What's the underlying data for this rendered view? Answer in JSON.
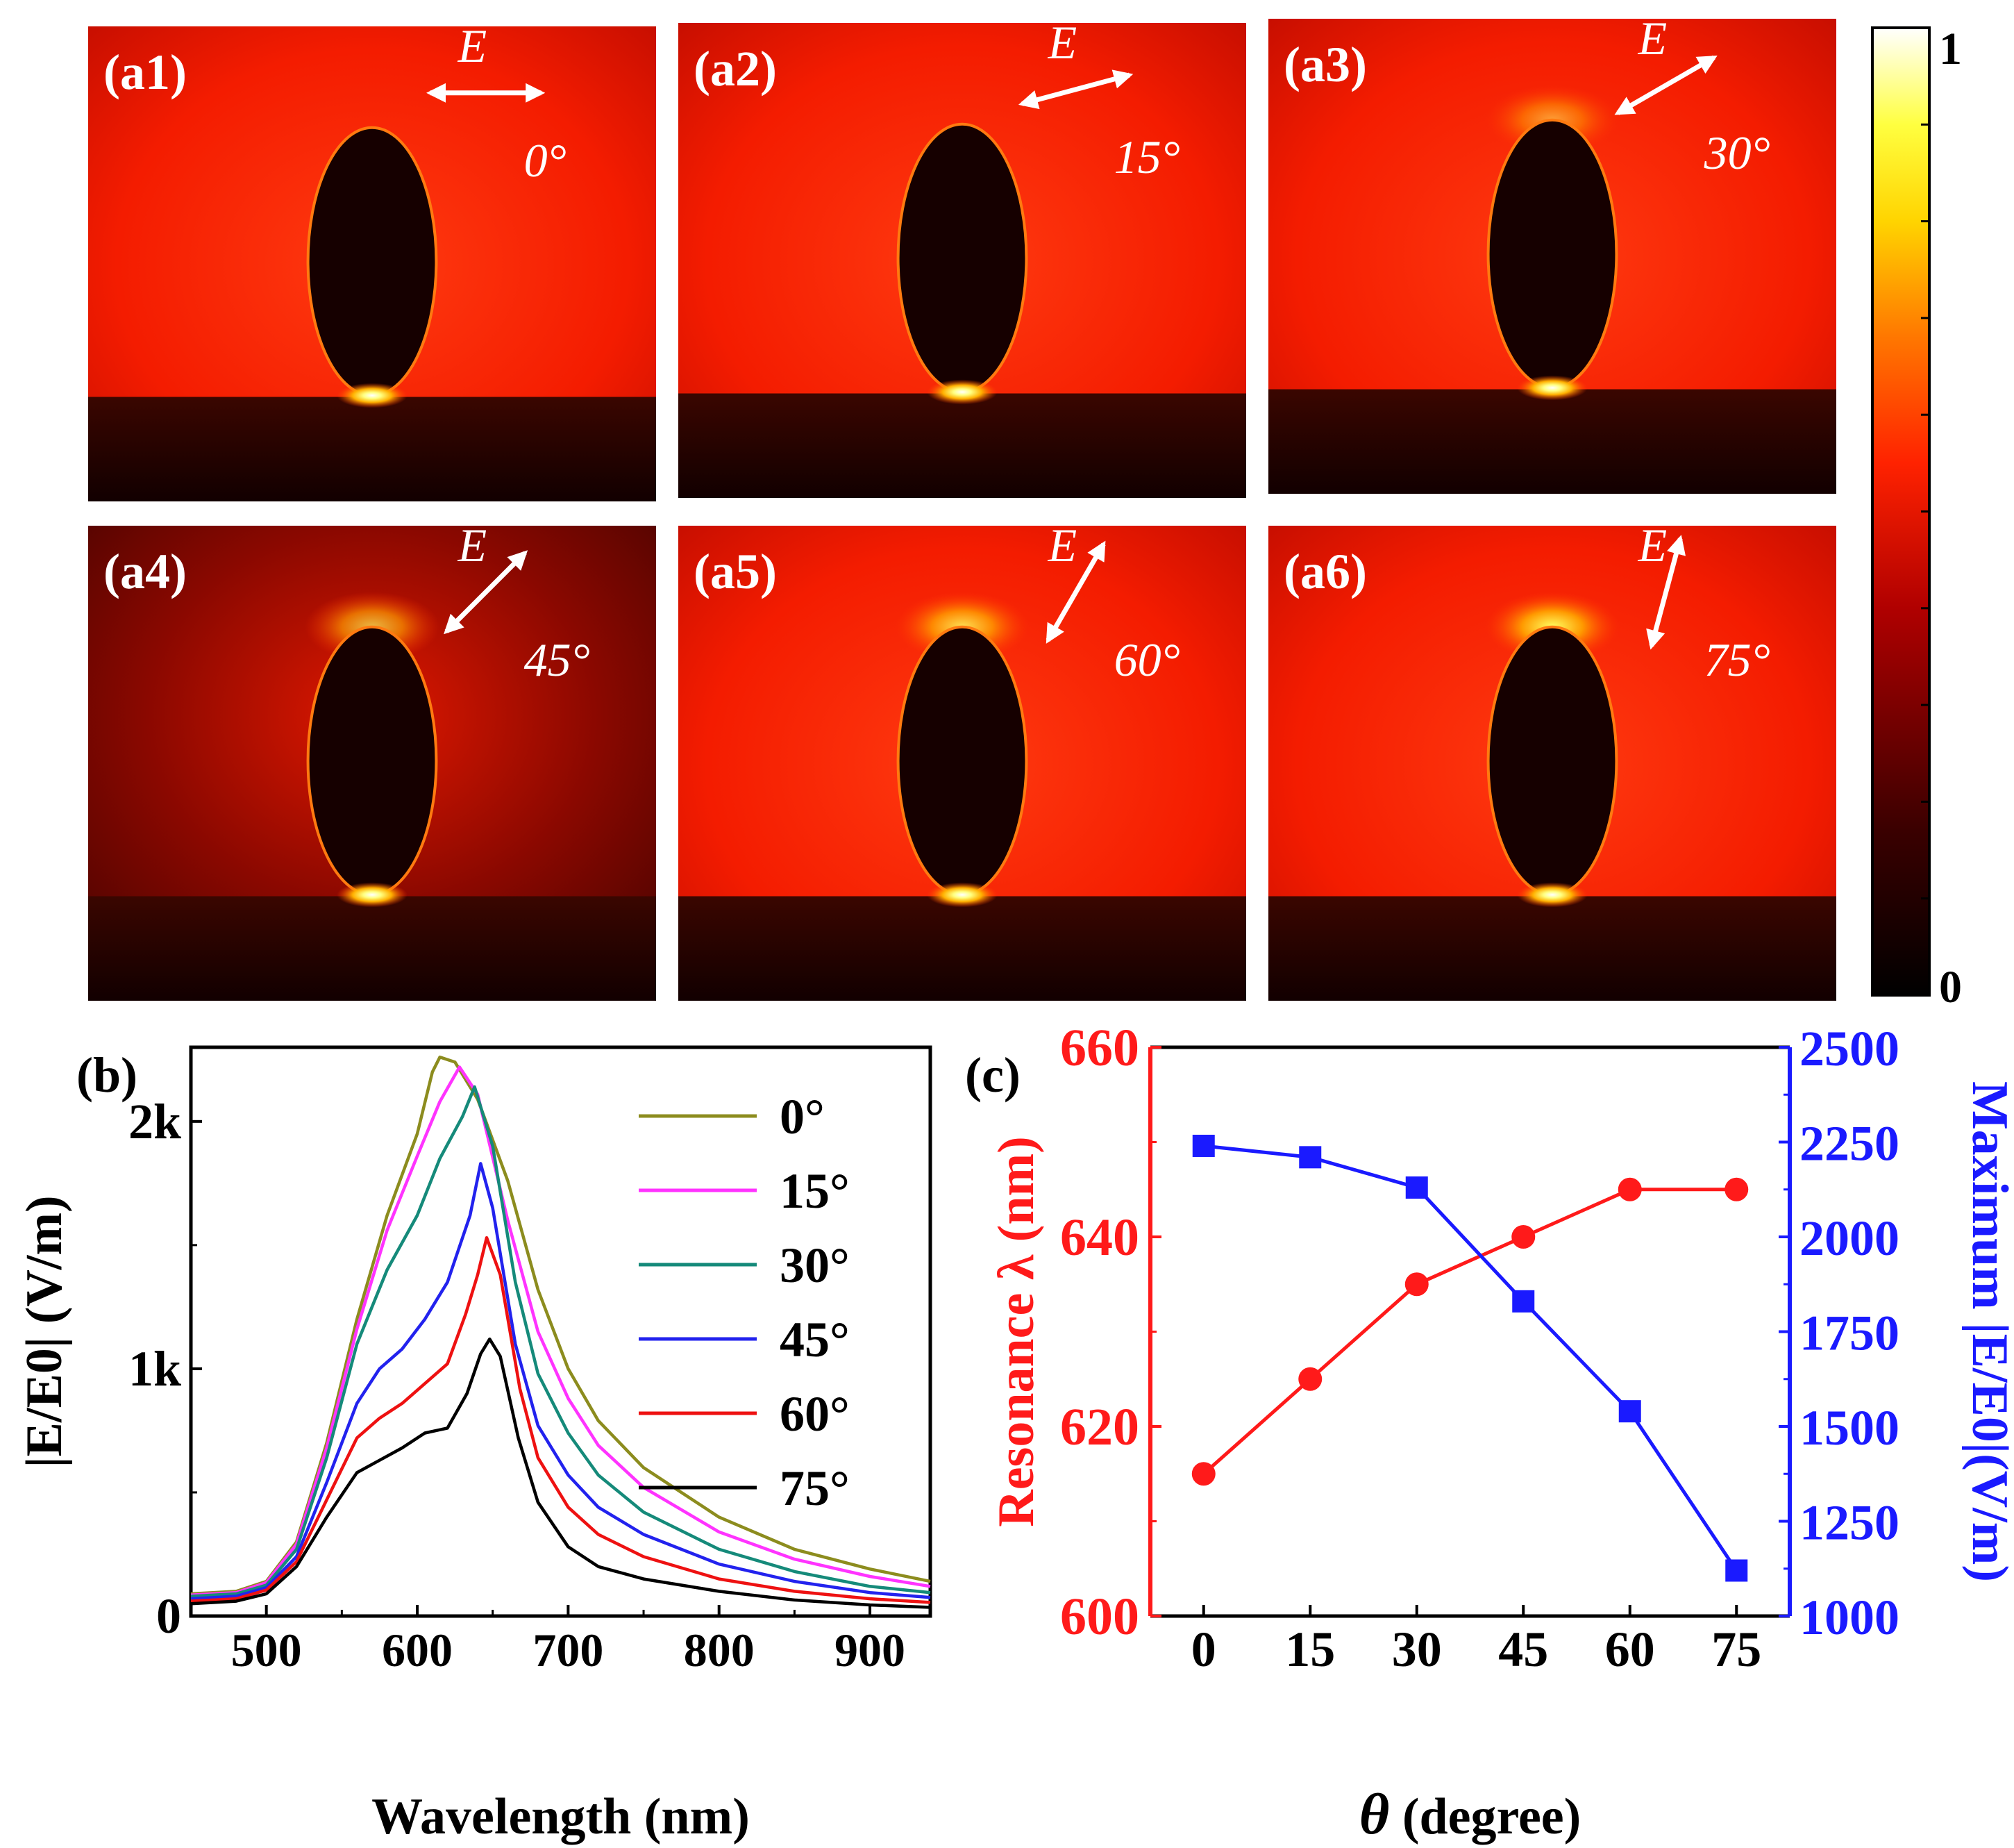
{
  "colors": {
    "left_axis": "#ff1a1a",
    "right_axis": "#1a1aff",
    "panel_text": "#ffffff"
  },
  "field_maps": {
    "panels": [
      {
        "label": "(a1)",
        "field": "E",
        "angle_text": "0°",
        "angle_deg": 0
      },
      {
        "label": "(a2)",
        "field": "E",
        "angle_text": "15°",
        "angle_deg": 15
      },
      {
        "label": "(a3)",
        "field": "E",
        "angle_text": "30°",
        "angle_deg": 30
      },
      {
        "label": "(a4)",
        "field": "E",
        "angle_text": "45°",
        "angle_deg": 45
      },
      {
        "label": "(a5)",
        "field": "E",
        "angle_text": "60°",
        "angle_deg": 60
      },
      {
        "label": "(a6)",
        "field": "E",
        "angle_text": "75°",
        "angle_deg": 75
      }
    ],
    "colorbar": {
      "max_label": "1",
      "min_label": "0",
      "colormap": [
        "#000000",
        "#3a0000",
        "#b00000",
        "#ff2200",
        "#ff7700",
        "#ffd400",
        "#ffff40",
        "#ffffff"
      ]
    }
  },
  "chart_data": [
    {
      "panel_label": "(b)",
      "type": "line",
      "xlabel": "Wavelength (nm)",
      "ylabel": "|E/E0| (V/m)",
      "xlim": [
        450,
        940
      ],
      "ylim": [
        0,
        2300
      ],
      "xticks": [
        500,
        600,
        700,
        800,
        900
      ],
      "yticks": [
        {
          "value": 0,
          "label": "0"
        },
        {
          "value": 1000,
          "label": "1k"
        },
        {
          "value": 2000,
          "label": "2k"
        }
      ],
      "legend_position": "top-right",
      "series": [
        {
          "name": "0°",
          "color": "#8c8c1e",
          "points": [
            [
              450,
              90
            ],
            [
              480,
              100
            ],
            [
              500,
              140
            ],
            [
              520,
              300
            ],
            [
              540,
              700
            ],
            [
              560,
              1200
            ],
            [
              580,
              1620
            ],
            [
              600,
              1950
            ],
            [
              610,
              2200
            ],
            [
              615,
              2260
            ],
            [
              625,
              2240
            ],
            [
              640,
              2090
            ],
            [
              660,
              1760
            ],
            [
              680,
              1320
            ],
            [
              700,
              1000
            ],
            [
              720,
              790
            ],
            [
              750,
              600
            ],
            [
              800,
              400
            ],
            [
              850,
              270
            ],
            [
              900,
              190
            ],
            [
              940,
              140
            ]
          ]
        },
        {
          "name": "15°",
          "color": "#ff33ff",
          "points": [
            [
              450,
              85
            ],
            [
              480,
              95
            ],
            [
              500,
              135
            ],
            [
              520,
              290
            ],
            [
              540,
              680
            ],
            [
              560,
              1160
            ],
            [
              580,
              1560
            ],
            [
              600,
              1860
            ],
            [
              615,
              2080
            ],
            [
              628,
              2220
            ],
            [
              640,
              2110
            ],
            [
              660,
              1600
            ],
            [
              680,
              1150
            ],
            [
              700,
              880
            ],
            [
              720,
              690
            ],
            [
              750,
              520
            ],
            [
              800,
              340
            ],
            [
              850,
              230
            ],
            [
              900,
              160
            ],
            [
              940,
              120
            ]
          ]
        },
        {
          "name": "30°",
          "color": "#158a7a",
          "points": [
            [
              450,
              80
            ],
            [
              480,
              90
            ],
            [
              500,
              125
            ],
            [
              520,
              270
            ],
            [
              540,
              640
            ],
            [
              560,
              1100
            ],
            [
              580,
              1400
            ],
            [
              600,
              1620
            ],
            [
              615,
              1850
            ],
            [
              630,
              2020
            ],
            [
              638,
              2140
            ],
            [
              650,
              1900
            ],
            [
              665,
              1350
            ],
            [
              680,
              980
            ],
            [
              700,
              740
            ],
            [
              720,
              570
            ],
            [
              750,
              420
            ],
            [
              800,
              270
            ],
            [
              850,
              180
            ],
            [
              900,
              120
            ],
            [
              940,
              95
            ]
          ]
        },
        {
          "name": "45°",
          "color": "#2222ee",
          "points": [
            [
              450,
              70
            ],
            [
              480,
              80
            ],
            [
              500,
              115
            ],
            [
              520,
              240
            ],
            [
              540,
              540
            ],
            [
              560,
              860
            ],
            [
              575,
              1000
            ],
            [
              590,
              1080
            ],
            [
              605,
              1200
            ],
            [
              620,
              1350
            ],
            [
              635,
              1620
            ],
            [
              642,
              1830
            ],
            [
              650,
              1650
            ],
            [
              665,
              1100
            ],
            [
              680,
              770
            ],
            [
              700,
              570
            ],
            [
              720,
              440
            ],
            [
              750,
              330
            ],
            [
              800,
              210
            ],
            [
              850,
              140
            ],
            [
              900,
              95
            ],
            [
              940,
              75
            ]
          ]
        },
        {
          "name": "60°",
          "color": "#ee1111",
          "points": [
            [
              450,
              60
            ],
            [
              480,
              70
            ],
            [
              500,
              105
            ],
            [
              520,
              220
            ],
            [
              540,
              470
            ],
            [
              560,
              720
            ],
            [
              575,
              800
            ],
            [
              590,
              860
            ],
            [
              605,
              940
            ],
            [
              620,
              1020
            ],
            [
              632,
              1220
            ],
            [
              640,
              1380
            ],
            [
              646,
              1530
            ],
            [
              655,
              1380
            ],
            [
              668,
              920
            ],
            [
              680,
              640
            ],
            [
              700,
              440
            ],
            [
              720,
              330
            ],
            [
              750,
              240
            ],
            [
              800,
              150
            ],
            [
              850,
              100
            ],
            [
              900,
              70
            ],
            [
              940,
              55
            ]
          ]
        },
        {
          "name": "75°",
          "color": "#000000",
          "points": [
            [
              450,
              50
            ],
            [
              480,
              60
            ],
            [
              500,
              90
            ],
            [
              520,
              200
            ],
            [
              540,
              400
            ],
            [
              560,
              580
            ],
            [
              575,
              630
            ],
            [
              590,
              680
            ],
            [
              605,
              740
            ],
            [
              620,
              760
            ],
            [
              633,
              900
            ],
            [
              642,
              1060
            ],
            [
              648,
              1120
            ],
            [
              655,
              1050
            ],
            [
              667,
              720
            ],
            [
              680,
              460
            ],
            [
              700,
              280
            ],
            [
              720,
              200
            ],
            [
              750,
              150
            ],
            [
              800,
              100
            ],
            [
              850,
              65
            ],
            [
              900,
              45
            ],
            [
              940,
              35
            ]
          ]
        }
      ]
    },
    {
      "panel_label": "(c)",
      "type": "line",
      "xlabel_symbol": "θ",
      "xlabel_text": " (degree)",
      "xlim": [
        -7.5,
        82.5
      ],
      "xticks": [
        0,
        15,
        30,
        45,
        60,
        75
      ],
      "left_axis": {
        "label": "Resonance λ (nm)",
        "ylim": [
          600,
          660
        ],
        "ticks": [
          600,
          620,
          640,
          660
        ]
      },
      "right_axis": {
        "label": "Maximum |E/E0|(V/m)",
        "ylim": [
          1000,
          2500
        ],
        "ticks": [
          1000,
          1250,
          1500,
          1750,
          2000,
          2250,
          2500
        ]
      },
      "series": [
        {
          "name": "Resonance λ",
          "axis": "left",
          "marker": "circle",
          "color": "#ff1a1a",
          "x": [
            0,
            15,
            30,
            45,
            60,
            75
          ],
          "y": [
            615,
            625,
            635,
            640,
            645,
            645
          ]
        },
        {
          "name": "Maximum |E/E0|",
          "axis": "right",
          "marker": "square",
          "color": "#1a1aff",
          "x": [
            0,
            15,
            30,
            45,
            60,
            75
          ],
          "y": [
            2240,
            2210,
            2130,
            1830,
            1540,
            1120
          ]
        }
      ]
    }
  ]
}
